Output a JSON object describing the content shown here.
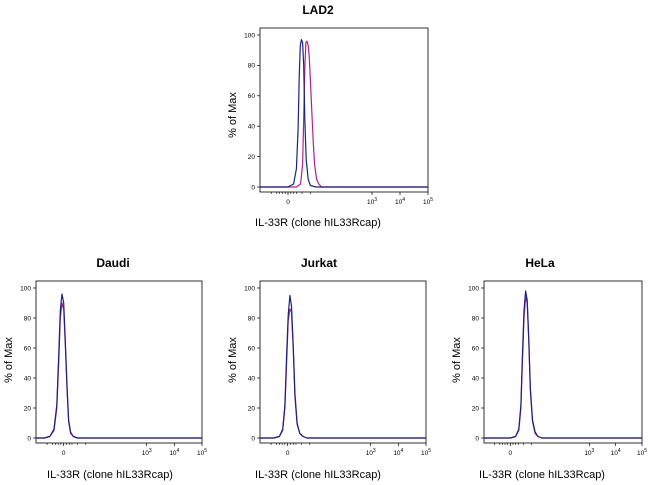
{
  "chart_data": [
    {
      "type": "line",
      "title": "LAD2",
      "xlabel": "IL-33R (clone hIL33Rcap)",
      "ylabel": "% of Max",
      "ylim": [
        0,
        100
      ],
      "x_scale": "biexponential",
      "y_ticks": [
        "0",
        "20",
        "40",
        "60",
        "80",
        "100"
      ],
      "x_ticks": [
        {
          "base": "0",
          "exp": ""
        },
        {
          "base": "10",
          "exp": "3"
        },
        {
          "base": "10",
          "exp": "4"
        },
        {
          "base": "10",
          "exp": "5"
        }
      ],
      "series": [
        {
          "color": "#1a237e",
          "x": [
            0.0,
            0.2,
            0.3,
            0.36,
            0.4,
            0.44,
            0.48,
            0.52,
            0.56,
            0.6,
            0.65,
            0.72,
            0.8,
            1.0
          ],
          "y": [
            0,
            2,
            12,
            38,
            72,
            93,
            97,
            95,
            80,
            45,
            18,
            5,
            1,
            0
          ]
        },
        {
          "color": "#b0208f",
          "x": [
            0.3,
            0.45,
            0.52,
            0.56,
            0.6,
            0.64,
            0.68,
            0.72,
            0.76,
            0.8,
            0.85,
            0.9,
            0.95,
            1.02,
            1.1,
            1.2
          ],
          "y": [
            0,
            2,
            15,
            45,
            78,
            95,
            96,
            93,
            85,
            70,
            50,
            30,
            15,
            5,
            2,
            0
          ]
        }
      ]
    },
    {
      "type": "line",
      "title": "Daudi",
      "xlabel": "IL-33R (clone hIL33Rcap)",
      "ylabel": "% of Max",
      "ylim": [
        0,
        100
      ],
      "x_scale": "biexponential",
      "y_ticks": [
        "0",
        "20",
        "40",
        "60",
        "80",
        "100"
      ],
      "x_ticks": [
        {
          "base": "0",
          "exp": ""
        },
        {
          "base": "10",
          "exp": "3"
        },
        {
          "base": "10",
          "exp": "4"
        },
        {
          "base": "10",
          "exp": "5"
        }
      ],
      "series": [
        {
          "color": "#1a237e",
          "x": [
            -0.7,
            -0.5,
            -0.35,
            -0.25,
            -0.18,
            -0.12,
            -0.06,
            0.0,
            0.06,
            0.12,
            0.18,
            0.25,
            0.35,
            0.5
          ],
          "y": [
            0,
            1,
            6,
            22,
            55,
            85,
            96,
            90,
            65,
            35,
            12,
            4,
            1,
            0
          ]
        },
        {
          "color": "#b0208f",
          "x": [
            -0.7,
            -0.5,
            -0.35,
            -0.25,
            -0.18,
            -0.12,
            -0.06,
            0.0,
            0.06,
            0.12,
            0.18,
            0.25,
            0.35,
            0.5
          ],
          "y": [
            0,
            1,
            5,
            20,
            50,
            80,
            90,
            86,
            62,
            33,
            11,
            3,
            1,
            0
          ]
        }
      ]
    },
    {
      "type": "line",
      "title": "Jurkat",
      "xlabel": "IL-33R (clone hIL33Rcap)",
      "ylabel": "% of Max",
      "ylim": [
        0,
        100
      ],
      "x_scale": "biexponential",
      "y_ticks": [
        "0",
        "20",
        "40",
        "60",
        "80",
        "100"
      ],
      "x_ticks": [
        {
          "base": "0",
          "exp": ""
        },
        {
          "base": "10",
          "exp": "3"
        },
        {
          "base": "10",
          "exp": "4"
        },
        {
          "base": "10",
          "exp": "5"
        }
      ],
      "series": [
        {
          "color": "#1a237e",
          "x": [
            -0.5,
            -0.3,
            -0.18,
            -0.1,
            -0.04,
            0.02,
            0.08,
            0.14,
            0.2,
            0.26,
            0.34,
            0.44,
            0.56,
            0.7
          ],
          "y": [
            0,
            1,
            6,
            22,
            55,
            82,
            95,
            88,
            62,
            30,
            10,
            3,
            1,
            0
          ]
        },
        {
          "color": "#b0208f",
          "x": [
            -0.5,
            -0.3,
            -0.18,
            -0.1,
            -0.04,
            0.02,
            0.08,
            0.14,
            0.2,
            0.26,
            0.34,
            0.44,
            0.56,
            0.7
          ],
          "y": [
            0,
            1,
            5,
            20,
            50,
            78,
            86,
            84,
            60,
            28,
            9,
            3,
            1,
            0
          ]
        }
      ]
    },
    {
      "type": "line",
      "title": "HeLa",
      "xlabel": "IL-33R (clone hIL33Rcap)",
      "ylabel": "% of Max",
      "ylim": [
        0,
        100
      ],
      "x_scale": "biexponential",
      "y_ticks": [
        "0",
        "20",
        "40",
        "60",
        "80",
        "100"
      ],
      "x_ticks": [
        {
          "base": "0",
          "exp": ""
        },
        {
          "base": "10",
          "exp": "3"
        },
        {
          "base": "10",
          "exp": "4"
        },
        {
          "base": "10",
          "exp": "5"
        }
      ],
      "series": [
        {
          "color": "#1a237e",
          "x": [
            0.0,
            0.2,
            0.32,
            0.4,
            0.46,
            0.52,
            0.58,
            0.64,
            0.7,
            0.76,
            0.84,
            0.94,
            1.05,
            1.2
          ],
          "y": [
            0,
            1,
            6,
            22,
            55,
            85,
            98,
            92,
            66,
            34,
            12,
            4,
            1,
            0
          ]
        },
        {
          "color": "#b0208f",
          "x": [
            0.0,
            0.2,
            0.32,
            0.4,
            0.46,
            0.52,
            0.58,
            0.64,
            0.7,
            0.76,
            0.84,
            0.94,
            1.05,
            1.2
          ],
          "y": [
            0,
            1,
            5,
            20,
            50,
            80,
            94,
            90,
            64,
            32,
            11,
            3,
            1,
            0
          ]
        }
      ]
    }
  ]
}
